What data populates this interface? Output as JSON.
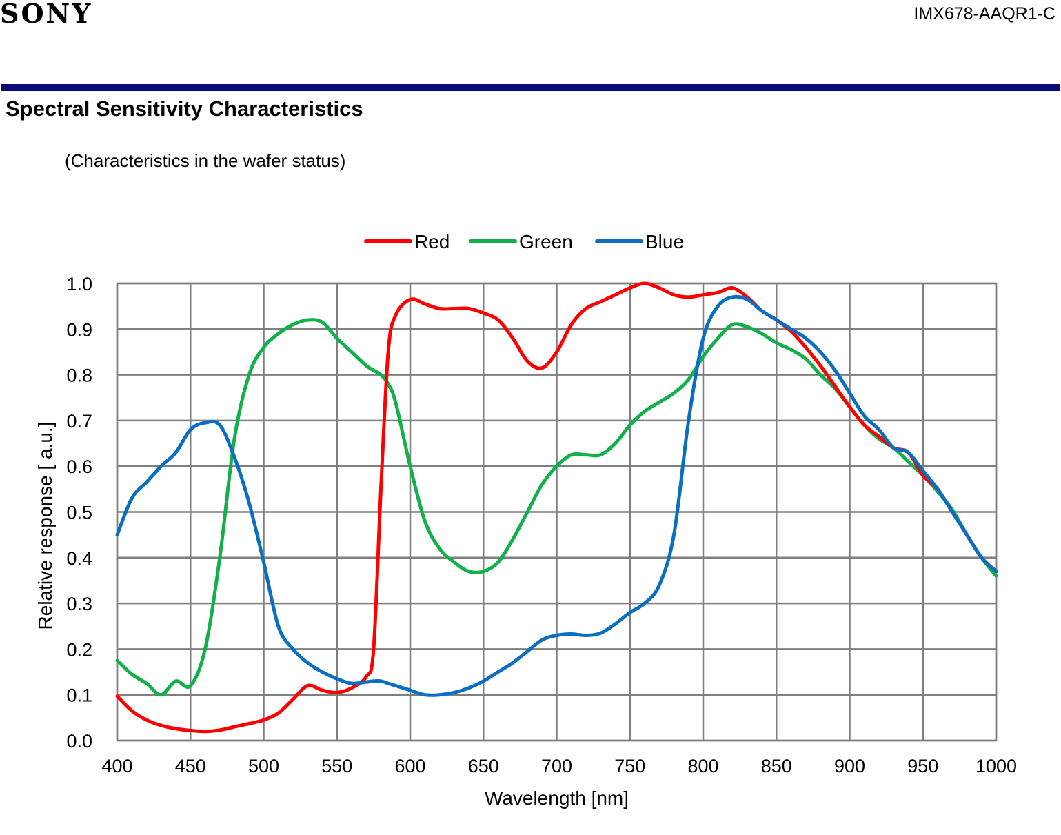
{
  "header": {
    "brand": "SONY",
    "model": "IMX678-AAQR1-C",
    "rule_color": "#0a0a78"
  },
  "section": {
    "title": "Spectral Sensitivity Characteristics",
    "subtitle": "(Characteristics in the wafer status)"
  },
  "chart_data": {
    "type": "line",
    "xlabel": "Wavelength [nm]",
    "ylabel": "Relative response [ a.u.]",
    "xlim": [
      400,
      1000
    ],
    "ylim": [
      0,
      1.0
    ],
    "xticks": [
      400,
      450,
      500,
      550,
      600,
      650,
      700,
      750,
      800,
      850,
      900,
      950,
      1000
    ],
    "yticks": [
      0.0,
      0.1,
      0.2,
      0.3,
      0.4,
      0.5,
      0.6,
      0.7,
      0.8,
      0.9,
      1.0
    ],
    "grid": true,
    "legend_position": "top-center",
    "x": [
      400,
      410,
      420,
      430,
      440,
      450,
      460,
      470,
      480,
      490,
      500,
      510,
      520,
      530,
      540,
      550,
      560,
      570,
      575,
      580,
      585,
      590,
      600,
      610,
      620,
      630,
      640,
      650,
      660,
      670,
      680,
      690,
      700,
      710,
      720,
      730,
      740,
      750,
      760,
      770,
      780,
      790,
      800,
      810,
      820,
      830,
      840,
      850,
      860,
      870,
      880,
      890,
      900,
      910,
      920,
      930,
      940,
      950,
      960,
      970,
      980,
      990,
      1000
    ],
    "series": [
      {
        "name": "Red",
        "color": "#ff0000",
        "values": [
          0.097,
          0.065,
          0.045,
          0.033,
          0.026,
          0.022,
          0.02,
          0.023,
          0.03,
          0.037,
          0.045,
          0.06,
          0.09,
          0.12,
          0.11,
          0.105,
          0.115,
          0.14,
          0.2,
          0.55,
          0.85,
          0.93,
          0.965,
          0.955,
          0.945,
          0.945,
          0.945,
          0.935,
          0.92,
          0.88,
          0.83,
          0.815,
          0.85,
          0.91,
          0.945,
          0.96,
          0.975,
          0.99,
          1.0,
          0.99,
          0.975,
          0.97,
          0.975,
          0.98,
          0.99,
          0.97,
          0.94,
          0.92,
          0.895,
          0.86,
          0.82,
          0.775,
          0.73,
          0.69,
          0.665,
          0.64,
          0.63,
          0.58,
          0.55,
          0.5,
          0.45,
          0.4,
          0.37
        ]
      },
      {
        "name": "Green",
        "color": "#12b04a",
        "values": [
          0.175,
          0.145,
          0.125,
          0.1,
          0.13,
          0.12,
          0.2,
          0.4,
          0.66,
          0.8,
          0.86,
          0.89,
          0.91,
          0.92,
          0.915,
          0.88,
          0.85,
          0.82,
          0.81,
          0.8,
          0.78,
          0.74,
          0.6,
          0.48,
          0.42,
          0.39,
          0.37,
          0.37,
          0.39,
          0.44,
          0.5,
          0.56,
          0.6,
          0.625,
          0.625,
          0.625,
          0.65,
          0.69,
          0.72,
          0.74,
          0.76,
          0.79,
          0.84,
          0.88,
          0.91,
          0.905,
          0.89,
          0.87,
          0.855,
          0.835,
          0.8,
          0.77,
          0.73,
          0.69,
          0.66,
          0.64,
          0.61,
          0.58,
          0.545,
          0.505,
          0.45,
          0.4,
          0.36
        ]
      },
      {
        "name": "Blue",
        "color": "#0a6fc2",
        "values": [
          0.45,
          0.53,
          0.565,
          0.6,
          0.63,
          0.68,
          0.695,
          0.69,
          0.62,
          0.52,
          0.39,
          0.25,
          0.2,
          0.17,
          0.15,
          0.135,
          0.125,
          0.128,
          0.13,
          0.13,
          0.125,
          0.12,
          0.11,
          0.1,
          0.1,
          0.105,
          0.115,
          0.13,
          0.15,
          0.17,
          0.195,
          0.22,
          0.23,
          0.233,
          0.23,
          0.235,
          0.255,
          0.28,
          0.3,
          0.34,
          0.45,
          0.7,
          0.88,
          0.95,
          0.97,
          0.965,
          0.94,
          0.92,
          0.9,
          0.88,
          0.85,
          0.81,
          0.76,
          0.71,
          0.68,
          0.64,
          0.63,
          0.59,
          0.55,
          0.5,
          0.45,
          0.4,
          0.37
        ]
      }
    ]
  }
}
